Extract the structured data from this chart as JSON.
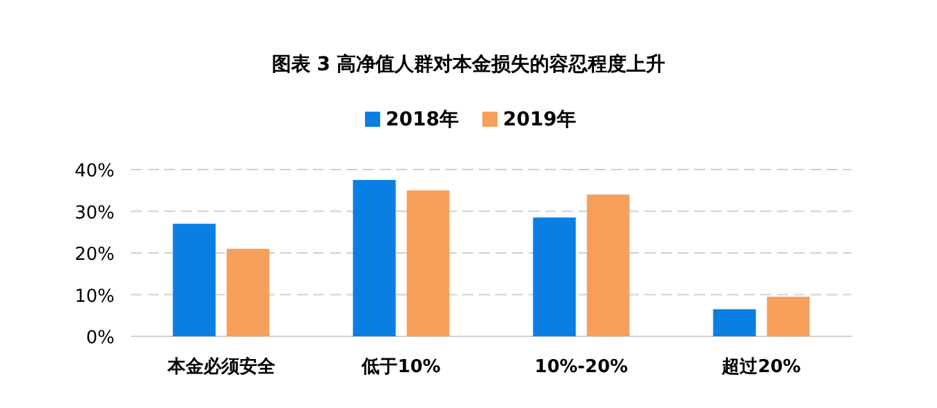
{
  "chart_data": {
    "type": "bar",
    "title": "图表 3  高净值人群对本金损失的容忍程度上升",
    "categories": [
      "本金必须安全",
      "低于10%",
      "10%-20%",
      "超过20%"
    ],
    "series": [
      {
        "name": "2018年",
        "color": "#0a7fe3",
        "values": [
          27,
          37.5,
          28.5,
          6.5
        ]
      },
      {
        "name": "2019年",
        "color": "#f7a05b",
        "values": [
          21,
          35,
          34,
          9.5
        ]
      }
    ],
    "ylim": [
      0,
      40
    ],
    "yticks": [
      {
        "value": 0,
        "label": "0%"
      },
      {
        "value": 10,
        "label": "10%"
      },
      {
        "value": 20,
        "label": "20%"
      },
      {
        "value": 30,
        "label": "30%"
      },
      {
        "value": 40,
        "label": "40%"
      }
    ],
    "grid": "y",
    "legend": "top"
  }
}
